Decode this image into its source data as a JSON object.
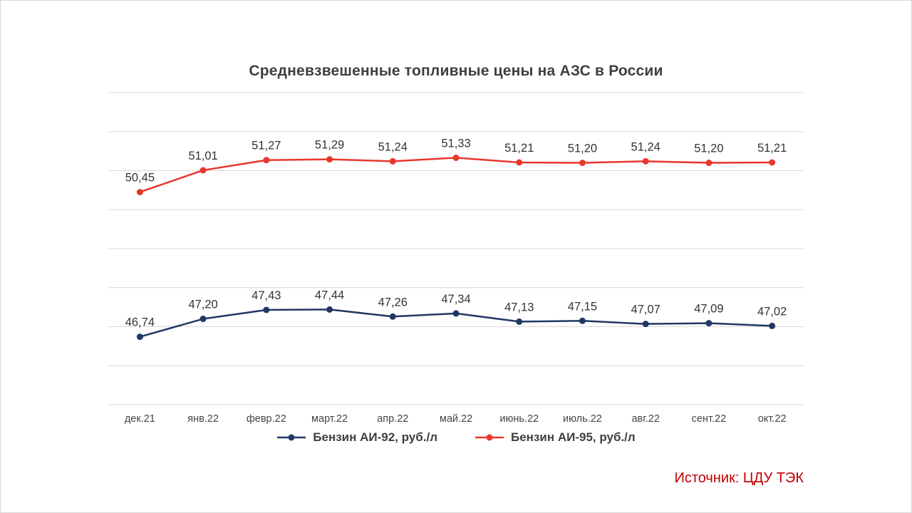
{
  "page": {
    "source": "Источник: ЦДУ ТЭК"
  },
  "chart_data": {
    "type": "line",
    "title": "Средневзвешенные топливные цены на АЗС в России",
    "categories": [
      "дек.21",
      "янв.22",
      "февр.22",
      "март.22",
      "апр.22",
      "май.22",
      "июнь.22",
      "июль.22",
      "авг.22",
      "сент.22",
      "окт.22"
    ],
    "series": [
      {
        "name": "Бензин АИ-92, руб./л",
        "color": "#203864",
        "values": [
          46.74,
          47.2,
          47.43,
          47.44,
          47.26,
          47.34,
          47.13,
          47.15,
          47.07,
          47.09,
          47.02
        ]
      },
      {
        "name": "Бензин АИ-95, руб./л",
        "color": "#e8372d",
        "values": [
          50.45,
          51.01,
          51.27,
          51.29,
          51.24,
          51.33,
          51.21,
          51.2,
          51.24,
          51.2,
          51.21
        ]
      }
    ],
    "ylim": [
      45,
      53
    ],
    "grid": true,
    "legend_position": "bottom",
    "decimal_separator": ",",
    "xlabel": "",
    "ylabel": "",
    "data_labels": true,
    "gridline_color": "#d9d9d9",
    "label_color": "#333333",
    "axis_label_color": "#444444",
    "source_color": "#c00000"
  }
}
